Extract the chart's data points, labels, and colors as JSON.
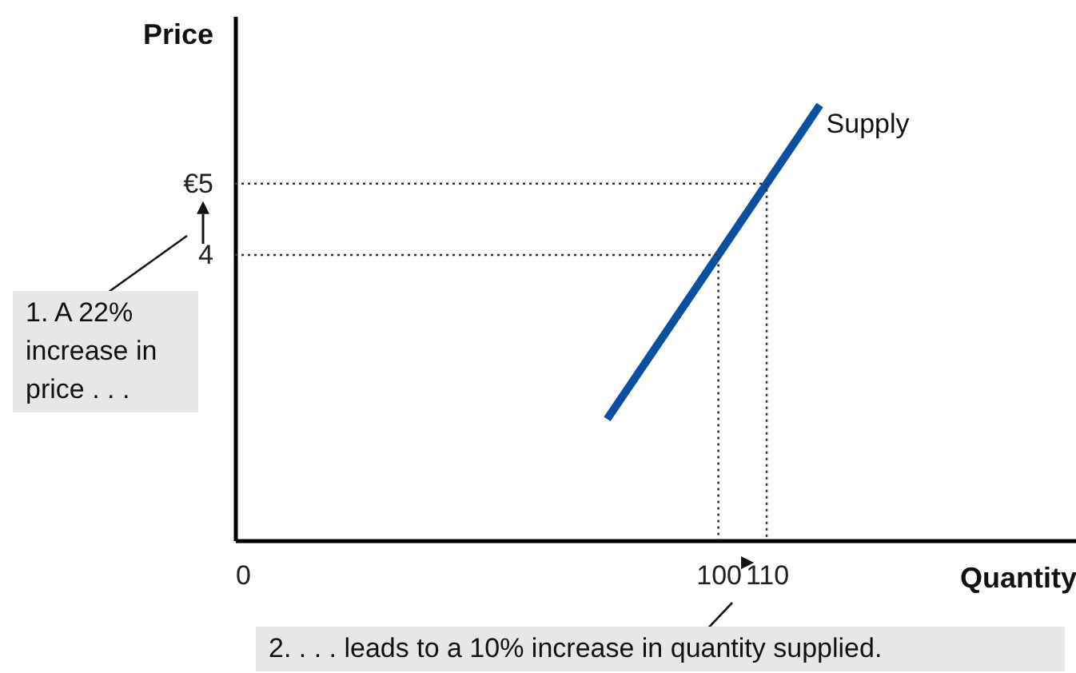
{
  "chart_data": {
    "type": "line",
    "xlabel": "Quantity",
    "ylabel": "Price",
    "xlim": [
      0,
      174
    ],
    "ylim": [
      0,
      7.35
    ],
    "xticks": [
      0,
      100,
      110
    ],
    "yticks": [
      4,
      {
        "value": 5,
        "label": "€5"
      }
    ],
    "grid": false,
    "legend": false,
    "marker": "none",
    "series": [
      {
        "name": "Supply",
        "color": "#0b4fa0",
        "x": [
          77,
          121
        ],
        "values": [
          1.7,
          6.1
        ]
      },
      {
        "color": "#333333",
        "line_style": "dotted",
        "x": [
          0,
          110,
          110
        ],
        "values": [
          5,
          5,
          0
        ]
      },
      {
        "color": "#333333",
        "line_style": "dotted",
        "x": [
          0,
          100,
          100
        ],
        "values": [
          4,
          4,
          0
        ]
      }
    ],
    "annotations": [
      "1. A 22% increase in price . . .",
      "2. . . . leads to a 10% increase in quantity supplied."
    ]
  }
}
